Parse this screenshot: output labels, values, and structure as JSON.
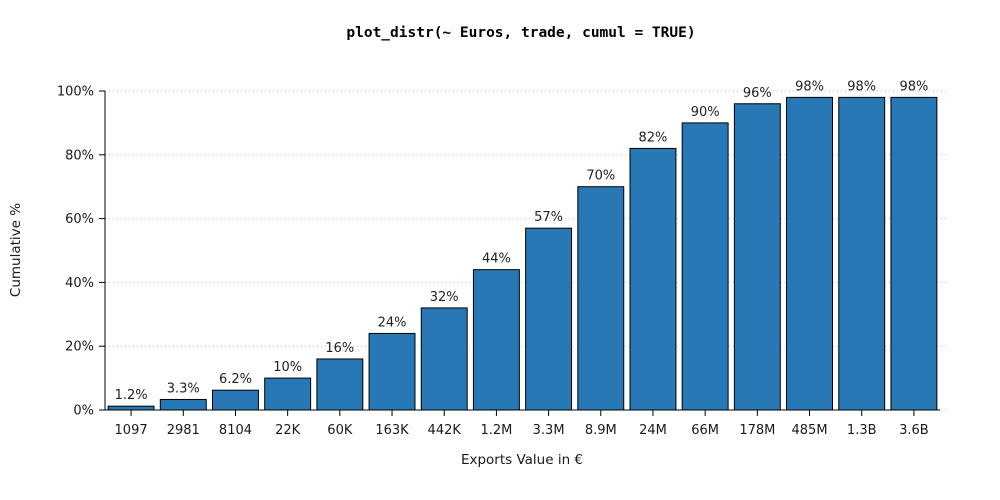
{
  "chart_data": {
    "type": "bar",
    "title": "plot_distr(~ Euros, trade, cumul = TRUE)",
    "xlabel": "Exports Value in €",
    "ylabel": "Cumulative %",
    "categories": [
      "1097",
      "2981",
      "8104",
      "22K",
      "60K",
      "163K",
      "442K",
      "1.2M",
      "3.3M",
      "8.9M",
      "24M",
      "66M",
      "178M",
      "485M",
      "1.3B",
      "3.6B"
    ],
    "values": [
      1.2,
      3.3,
      6.2,
      10,
      16,
      24,
      32,
      44,
      57,
      70,
      82,
      90,
      96,
      98,
      98,
      98
    ],
    "bar_labels": [
      "1.2%",
      "3.3%",
      "6.2%",
      "10%",
      "16%",
      "24%",
      "32%",
      "44%",
      "57%",
      "70%",
      "82%",
      "90%",
      "96%",
      "98%",
      "98%",
      "98%"
    ],
    "yticks": [
      0,
      20,
      40,
      60,
      80,
      100
    ],
    "ytick_labels": [
      "0%",
      "20%",
      "40%",
      "60%",
      "80%",
      "100%"
    ],
    "ylim": [
      0,
      100
    ],
    "bar_color": "#2878b5",
    "grid": "dotted-horizontal",
    "legend": "none"
  }
}
